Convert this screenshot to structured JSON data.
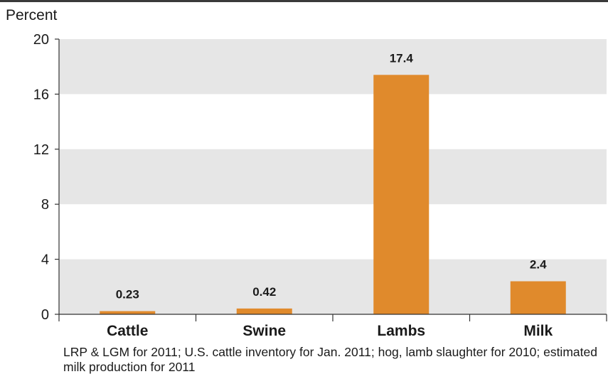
{
  "chart_data": {
    "type": "bar",
    "ylabel": "Percent",
    "xlabel": "",
    "categories": [
      "Cattle",
      "Swine",
      "Lambs",
      "Milk"
    ],
    "values": [
      0.23,
      0.42,
      17.4,
      2.4
    ],
    "data_labels": [
      "0.23",
      "0.42",
      "17.4",
      "2.4"
    ],
    "ylim": [
      0,
      20
    ],
    "yticks": [
      0,
      4,
      8,
      12,
      16,
      20
    ],
    "bar_color": "#e08a2c",
    "band_color": "#e6e6e6",
    "grid": "alternating horizontal bands"
  },
  "footnote": "LRP & LGM for 2011; U.S. cattle inventory for Jan. 2011; hog, lamb slaughter for 2010; estimated milk production for 2011"
}
